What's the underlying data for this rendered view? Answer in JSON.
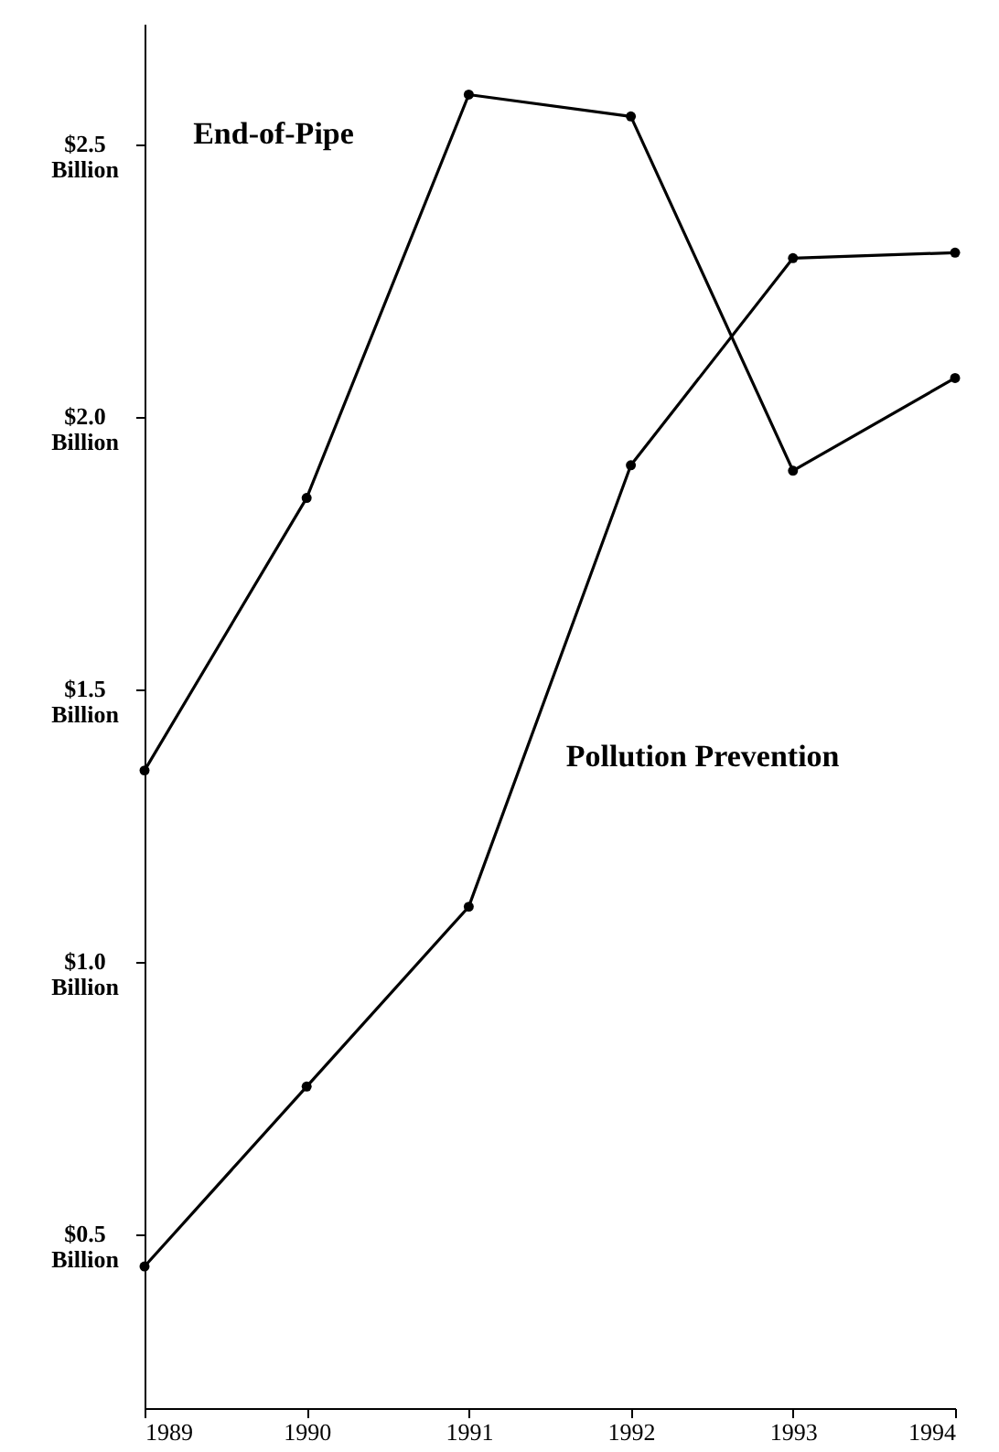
{
  "chart_data": {
    "type": "line",
    "categories": [
      "1989",
      "1990",
      "1991",
      "1992",
      "1993",
      "1994"
    ],
    "series": [
      {
        "name": "End-of-Pipe",
        "color": "#000000",
        "values": [
          1.35,
          1.85,
          2.59,
          2.55,
          1.9,
          2.07
        ]
      },
      {
        "name": "Pollution Prevention",
        "color": "#000000",
        "values": [
          0.44,
          0.77,
          1.1,
          1.91,
          2.29,
          2.3
        ]
      }
    ],
    "ylim": [
      0.18,
      2.72
    ],
    "yticks": [
      {
        "value": 0.5,
        "label": "$0.5 Billion"
      },
      {
        "value": 1.0,
        "label": "$1.0 Billion"
      },
      {
        "value": 1.5,
        "label": "$1.5 Billion"
      },
      {
        "value": 2.0,
        "label": "$2.0 Billion"
      },
      {
        "value": 2.5,
        "label": "$2.5 Billion"
      }
    ],
    "grid": false,
    "marker": "circle",
    "line_style": "solid"
  }
}
